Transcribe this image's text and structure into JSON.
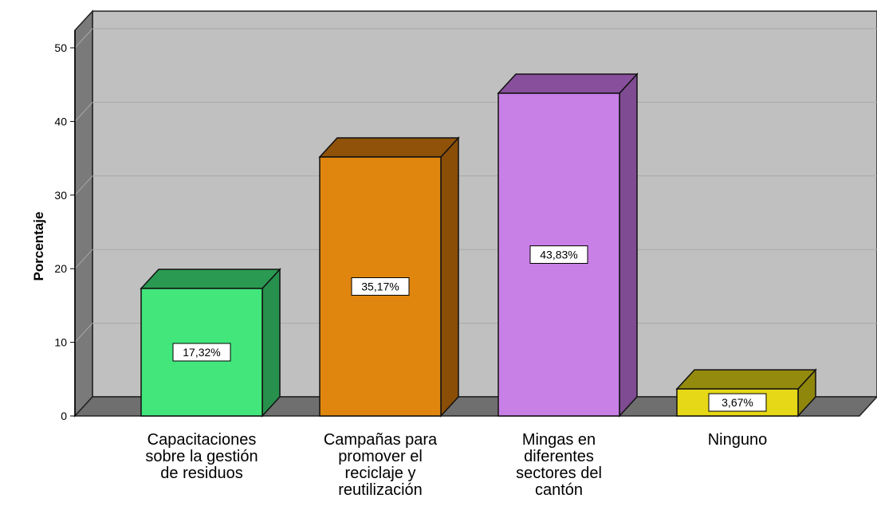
{
  "chart_data": {
    "type": "bar",
    "style": "3d",
    "ylabel": "Porcentaje",
    "ylim": [
      0,
      50
    ],
    "yticks": [
      0,
      10,
      20,
      30,
      40,
      50
    ],
    "grid": true,
    "categories": [
      [
        "Capacitaciones",
        "sobre la gestión",
        "de residuos"
      ],
      [
        "Campañas para",
        "promover el",
        "reciclaje y",
        "reutilización"
      ],
      [
        "Mingas en",
        "diferentes",
        "sectores del",
        "cantón"
      ],
      [
        "Ninguno"
      ]
    ],
    "values": [
      17.32,
      35.17,
      43.83,
      3.67
    ],
    "data_labels": [
      "17,32%",
      "35,17%",
      "43,83%",
      "3,67%"
    ],
    "colors": [
      {
        "front": "#42e67b",
        "side": "#26904c",
        "top": "#2a9a52"
      },
      {
        "front": "#e0860f",
        "side": "#8a4e07",
        "top": "#8f5208"
      },
      {
        "front": "#c87fe6",
        "side": "#7f4b92",
        "top": "#884f9c"
      },
      {
        "front": "#e6d816",
        "side": "#8f860c",
        "top": "#948b0e"
      }
    ],
    "wall_color": "#c0c0c0",
    "floor_color": "#6f6f6f",
    "side_wall_color": "#7a7a7a"
  }
}
